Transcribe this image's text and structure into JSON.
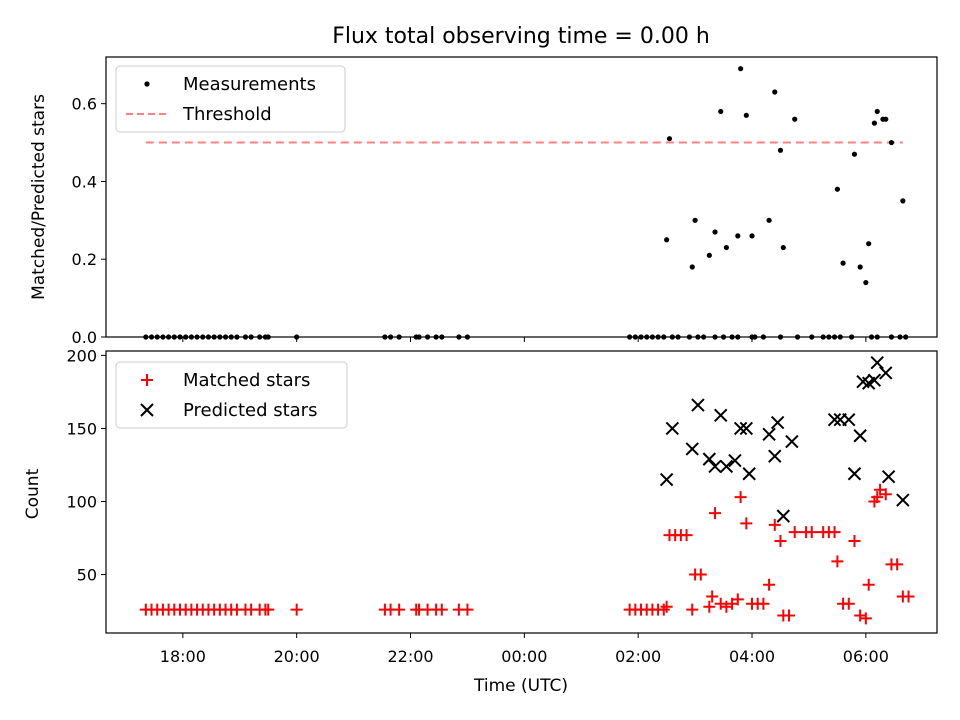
{
  "title": "Flux total observing time = 0.00 h",
  "chart_data": [
    {
      "type": "scatter",
      "panel": "top",
      "ylabel": "Matched/Predicted stars",
      "ylim": [
        0,
        0.72
      ],
      "yticks": [
        0.0,
        0.2,
        0.4,
        0.6
      ],
      "ytick_labels": [
        "0.0",
        "0.2",
        "0.4",
        "0.6"
      ],
      "xlim": [
        16.65,
        31.25
      ],
      "legend": {
        "placement": "top-left",
        "entries": [
          "Measurements",
          "Threshold"
        ]
      },
      "threshold": {
        "name": "Threshold",
        "value": 0.5,
        "x": [
          17.35,
          30.65
        ],
        "color": "#ff8080"
      },
      "series": [
        {
          "name": "Measurements",
          "marker": "dot",
          "color": "#000000",
          "points": [
            [
              17.35,
              0
            ],
            [
              17.45,
              0
            ],
            [
              17.55,
              0
            ],
            [
              17.65,
              0
            ],
            [
              17.75,
              0
            ],
            [
              17.85,
              0
            ],
            [
              17.95,
              0
            ],
            [
              18.05,
              0
            ],
            [
              18.15,
              0
            ],
            [
              18.25,
              0
            ],
            [
              18.35,
              0
            ],
            [
              18.45,
              0
            ],
            [
              18.55,
              0
            ],
            [
              18.65,
              0
            ],
            [
              18.75,
              0
            ],
            [
              18.85,
              0
            ],
            [
              18.95,
              0
            ],
            [
              19.1,
              0
            ],
            [
              19.2,
              0
            ],
            [
              19.35,
              0
            ],
            [
              19.45,
              0
            ],
            [
              19.5,
              0
            ],
            [
              20.0,
              0
            ],
            [
              21.55,
              0
            ],
            [
              21.65,
              0
            ],
            [
              21.8,
              0
            ],
            [
              22.1,
              0
            ],
            [
              22.15,
              0
            ],
            [
              22.3,
              0
            ],
            [
              22.45,
              0
            ],
            [
              22.55,
              0
            ],
            [
              22.85,
              0
            ],
            [
              23.0,
              0
            ],
            [
              25.85,
              0
            ],
            [
              25.95,
              0
            ],
            [
              26.05,
              0
            ],
            [
              26.15,
              0
            ],
            [
              26.25,
              0
            ],
            [
              26.35,
              0
            ],
            [
              26.45,
              0
            ],
            [
              26.6,
              0
            ],
            [
              26.7,
              0
            ],
            [
              26.9,
              0
            ],
            [
              27.05,
              0
            ],
            [
              27.15,
              0
            ],
            [
              27.35,
              0
            ],
            [
              27.5,
              0
            ],
            [
              27.65,
              0
            ],
            [
              27.75,
              0
            ],
            [
              28.0,
              0
            ],
            [
              28.05,
              0
            ],
            [
              28.2,
              0
            ],
            [
              28.5,
              0
            ],
            [
              28.8,
              0
            ],
            [
              29.05,
              0
            ],
            [
              29.25,
              0
            ],
            [
              29.35,
              0
            ],
            [
              29.45,
              0
            ],
            [
              29.55,
              0
            ],
            [
              29.75,
              0
            ],
            [
              30.1,
              0
            ],
            [
              30.2,
              0
            ],
            [
              30.45,
              0
            ],
            [
              30.6,
              0
            ],
            [
              30.7,
              0
            ],
            [
              26.5,
              0.25
            ],
            [
              26.55,
              0.51
            ],
            [
              26.95,
              0.18
            ],
            [
              27.0,
              0.3
            ],
            [
              27.25,
              0.21
            ],
            [
              27.35,
              0.27
            ],
            [
              27.45,
              0.58
            ],
            [
              27.55,
              0.23
            ],
            [
              27.75,
              0.26
            ],
            [
              27.8,
              0.69
            ],
            [
              27.9,
              0.57
            ],
            [
              28.0,
              0.26
            ],
            [
              28.3,
              0.3
            ],
            [
              28.4,
              0.63
            ],
            [
              28.5,
              0.48
            ],
            [
              28.55,
              0.23
            ],
            [
              28.75,
              0.56
            ],
            [
              29.5,
              0.38
            ],
            [
              29.6,
              0.19
            ],
            [
              29.8,
              0.47
            ],
            [
              29.9,
              0.18
            ],
            [
              30.0,
              0.14
            ],
            [
              30.05,
              0.24
            ],
            [
              30.15,
              0.55
            ],
            [
              30.2,
              0.58
            ],
            [
              30.3,
              0.56
            ],
            [
              30.35,
              0.56
            ],
            [
              30.45,
              0.5
            ],
            [
              30.65,
              0.35
            ]
          ]
        }
      ]
    },
    {
      "type": "scatter",
      "panel": "bottom",
      "xlabel": "Time (UTC)",
      "ylabel": "Count",
      "ylim": [
        10,
        203
      ],
      "yticks": [
        50,
        100,
        150,
        200
      ],
      "ytick_labels": [
        "50",
        "100",
        "150",
        "200"
      ],
      "xlim": [
        16.65,
        31.25
      ],
      "xticks": [
        18,
        20,
        22,
        24,
        26,
        28,
        30
      ],
      "xtick_labels": [
        "18:00",
        "20:00",
        "22:00",
        "00:00",
        "02:00",
        "04:00",
        "06:00"
      ],
      "legend": {
        "placement": "top-left",
        "entries": [
          "Matched stars",
          "Predicted stars"
        ]
      },
      "series": [
        {
          "name": "Matched stars",
          "marker": "plus",
          "color": "#ff0000",
          "points": [
            [
              17.35,
              26
            ],
            [
              17.45,
              26
            ],
            [
              17.55,
              26
            ],
            [
              17.65,
              26
            ],
            [
              17.75,
              26
            ],
            [
              17.85,
              26
            ],
            [
              17.95,
              26
            ],
            [
              18.05,
              26
            ],
            [
              18.15,
              26
            ],
            [
              18.25,
              26
            ],
            [
              18.35,
              26
            ],
            [
              18.45,
              26
            ],
            [
              18.55,
              26
            ],
            [
              18.65,
              26
            ],
            [
              18.75,
              26
            ],
            [
              18.85,
              26
            ],
            [
              18.95,
              26
            ],
            [
              19.1,
              26
            ],
            [
              19.2,
              26
            ],
            [
              19.35,
              26
            ],
            [
              19.45,
              26
            ],
            [
              19.5,
              26
            ],
            [
              20.0,
              26
            ],
            [
              21.55,
              26
            ],
            [
              21.65,
              26
            ],
            [
              21.8,
              26
            ],
            [
              22.1,
              26
            ],
            [
              22.15,
              26
            ],
            [
              22.3,
              26
            ],
            [
              22.45,
              26
            ],
            [
              22.55,
              26
            ],
            [
              22.85,
              26
            ],
            [
              23.0,
              26
            ],
            [
              25.85,
              26
            ],
            [
              25.95,
              26
            ],
            [
              26.05,
              26
            ],
            [
              26.15,
              26
            ],
            [
              26.25,
              26
            ],
            [
              26.35,
              26
            ],
            [
              26.45,
              26
            ],
            [
              26.5,
              28
            ],
            [
              26.55,
              77
            ],
            [
              26.65,
              77
            ],
            [
              26.75,
              77
            ],
            [
              26.85,
              77
            ],
            [
              26.95,
              26
            ],
            [
              27.0,
              50
            ],
            [
              27.1,
              50
            ],
            [
              27.25,
              28
            ],
            [
              27.3,
              35
            ],
            [
              27.35,
              92
            ],
            [
              27.45,
              30
            ],
            [
              27.55,
              28
            ],
            [
              27.65,
              30
            ],
            [
              27.75,
              33
            ],
            [
              27.8,
              103
            ],
            [
              27.9,
              85
            ],
            [
              28.0,
              30
            ],
            [
              28.1,
              30
            ],
            [
              28.2,
              30
            ],
            [
              28.3,
              43
            ],
            [
              28.4,
              84
            ],
            [
              28.5,
              73
            ],
            [
              28.55,
              22
            ],
            [
              28.65,
              22
            ],
            [
              28.75,
              79
            ],
            [
              28.95,
              79
            ],
            [
              29.05,
              79
            ],
            [
              29.25,
              79
            ],
            [
              29.35,
              79
            ],
            [
              29.45,
              79
            ],
            [
              29.5,
              59
            ],
            [
              29.6,
              30
            ],
            [
              29.7,
              30
            ],
            [
              29.8,
              73
            ],
            [
              29.9,
              22
            ],
            [
              30.0,
              20
            ],
            [
              30.05,
              43
            ],
            [
              30.15,
              100
            ],
            [
              30.2,
              103
            ],
            [
              30.25,
              108
            ],
            [
              30.35,
              105
            ],
            [
              30.45,
              57
            ],
            [
              30.55,
              57
            ],
            [
              30.65,
              35
            ],
            [
              30.75,
              35
            ]
          ]
        },
        {
          "name": "Predicted stars",
          "marker": "x",
          "color": "#000000",
          "points": [
            [
              26.5,
              115
            ],
            [
              26.6,
              150
            ],
            [
              26.95,
              136
            ],
            [
              27.05,
              166
            ],
            [
              27.25,
              129
            ],
            [
              27.35,
              124
            ],
            [
              27.45,
              159
            ],
            [
              27.55,
              124
            ],
            [
              27.7,
              128
            ],
            [
              27.8,
              150
            ],
            [
              27.9,
              150
            ],
            [
              27.95,
              119
            ],
            [
              28.3,
              146
            ],
            [
              28.4,
              131
            ],
            [
              28.45,
              154
            ],
            [
              28.55,
              90
            ],
            [
              28.7,
              141
            ],
            [
              29.45,
              156
            ],
            [
              29.55,
              156
            ],
            [
              29.7,
              156
            ],
            [
              29.8,
              119
            ],
            [
              29.9,
              145
            ],
            [
              29.95,
              182
            ],
            [
              30.05,
              181
            ],
            [
              30.15,
              183
            ],
            [
              30.2,
              195
            ],
            [
              30.35,
              188
            ],
            [
              30.4,
              117
            ],
            [
              30.65,
              101
            ]
          ]
        }
      ]
    }
  ]
}
